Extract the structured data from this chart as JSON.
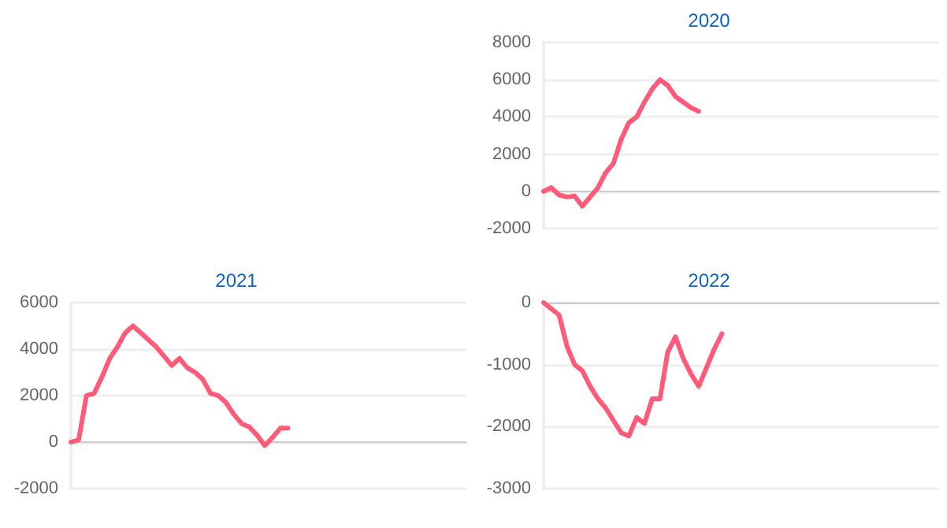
{
  "chart_data": [
    {
      "type": "line",
      "title": "2020",
      "color": "#ff5a78",
      "grid": "y",
      "tick_labels": "y",
      "ylim": [
        -2000,
        8000
      ],
      "yticks": [
        -2000,
        0,
        2000,
        4000,
        6000,
        8000
      ],
      "categories": [
        null,
        null,
        null,
        null,
        null,
        null,
        null,
        null,
        null,
        null,
        null,
        null,
        null,
        null,
        null,
        null,
        null,
        null,
        null,
        null,
        null,
        null,
        null,
        null,
        null,
        null,
        null,
        null,
        null,
        null,
        null,
        null,
        null,
        null,
        null,
        null,
        null,
        null,
        null,
        null,
        null,
        null,
        null,
        null,
        null,
        null,
        null,
        null,
        null,
        null,
        null,
        null
      ],
      "values": [
        0,
        200,
        -200,
        -300,
        -250,
        -800,
        -300,
        200,
        1000,
        1500,
        2800,
        3700,
        4000,
        4800,
        5500,
        6000,
        5700,
        5100,
        4800,
        4500,
        4300,
        null,
        null,
        null,
        null,
        null,
        null,
        null,
        null,
        null,
        null,
        null,
        null,
        null,
        null,
        null,
        null,
        null,
        null,
        null,
        null,
        null,
        null,
        null,
        null,
        null,
        null,
        null,
        null,
        null,
        null,
        null
      ]
    },
    {
      "type": "line",
      "title": "2021",
      "color": "#ff5a78",
      "grid": "y",
      "tick_labels": "y",
      "ylim": [
        -2000,
        6000
      ],
      "yticks": [
        -2000,
        0,
        2000,
        4000,
        6000
      ],
      "categories": [
        null,
        null,
        null,
        null,
        null,
        null,
        null,
        null,
        null,
        null,
        null,
        null,
        null,
        null,
        null,
        null,
        null,
        null,
        null,
        null,
        null,
        null,
        null,
        null,
        null,
        null,
        null,
        null,
        null,
        null,
        null,
        null,
        null,
        null,
        null,
        null,
        null,
        null,
        null,
        null,
        null,
        null,
        null,
        null,
        null,
        null,
        null,
        null,
        null,
        null,
        null,
        null
      ],
      "values": [
        0,
        100,
        2000,
        2100,
        2800,
        3600,
        4100,
        4700,
        5000,
        4700,
        4400,
        4100,
        3700,
        3300,
        3600,
        3200,
        3000,
        2700,
        2100,
        2000,
        1700,
        1200,
        800,
        650,
        300,
        -150,
        200,
        600,
        600,
        null,
        null,
        null,
        null,
        null,
        null,
        null,
        null,
        null,
        null,
        null,
        null,
        null,
        null,
        null,
        null,
        null,
        null,
        null,
        null,
        null,
        null,
        null
      ]
    },
    {
      "type": "line",
      "title": "2022",
      "color": "#ff5a78",
      "grid": "y",
      "tick_labels": "y",
      "ylim": [
        -3000,
        0
      ],
      "yticks": [
        -3000,
        -2000,
        -1000,
        0
      ],
      "categories": [
        null,
        null,
        null,
        null,
        null,
        null,
        null,
        null,
        null,
        null,
        null,
        null,
        null,
        null,
        null,
        null,
        null,
        null,
        null,
        null,
        null,
        null,
        null,
        null,
        null,
        null,
        null,
        null,
        null,
        null,
        null,
        null,
        null,
        null,
        null,
        null,
        null,
        null,
        null,
        null,
        null,
        null,
        null,
        null,
        null,
        null,
        null,
        null,
        null,
        null,
        null,
        null
      ],
      "values": [
        0,
        -100,
        -200,
        -700,
        -1000,
        -1100,
        -1350,
        -1550,
        -1700,
        -1900,
        -2100,
        -2150,
        -1850,
        -1950,
        -1550,
        -1550,
        -800,
        -550,
        -900,
        -1150,
        -1350,
        -1050,
        -750,
        -500,
        null,
        null,
        null,
        null,
        null,
        null,
        null,
        null,
        null,
        null,
        null,
        null,
        null,
        null,
        null,
        null,
        null,
        null,
        null,
        null,
        null,
        null,
        null,
        null,
        null,
        null,
        null,
        null
      ]
    }
  ]
}
